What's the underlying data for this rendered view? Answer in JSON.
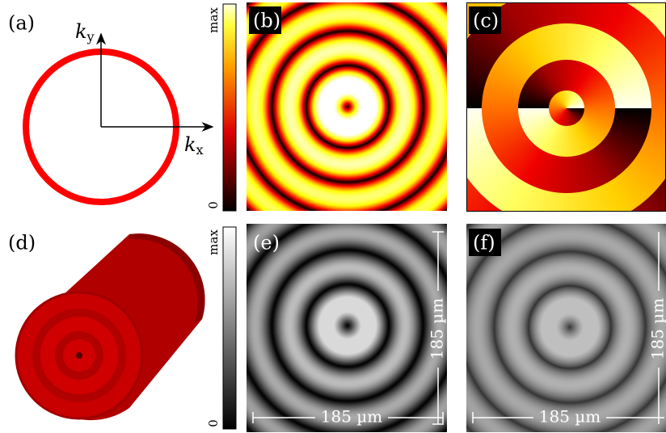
{
  "panels": {
    "a": {
      "label": "(a)",
      "ky": {
        "symbol": "k",
        "subscript": "y"
      },
      "kx": {
        "symbol": "k",
        "subscript": "x"
      }
    },
    "b": {
      "label": "(b)"
    },
    "c": {
      "label": "(c)"
    },
    "d": {
      "label": "(d)"
    },
    "e": {
      "label": "(e)",
      "scale_x": "185 µm",
      "scale_y": "185 µm"
    },
    "f": {
      "label": "(f)",
      "scale_x": "185 µm",
      "scale_y": "185 µm"
    }
  },
  "colorbars": [
    {
      "max": "max",
      "min": "0"
    },
    {
      "max": "max",
      "min": "0"
    }
  ]
}
